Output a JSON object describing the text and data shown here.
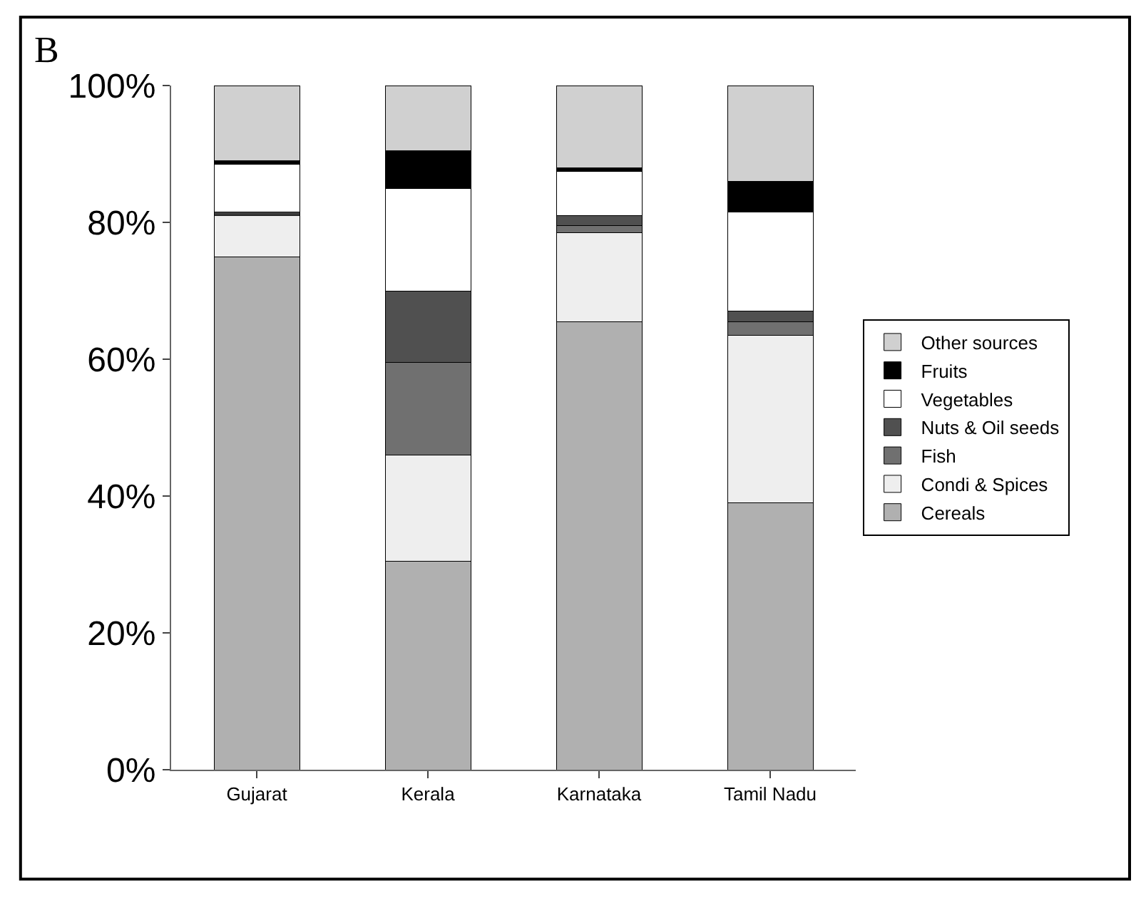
{
  "chart_data": {
    "type": "bar",
    "stacked": true,
    "title": "B",
    "categories": [
      "Gujarat",
      "Kerala",
      "Karnataka",
      "Tamil Nadu"
    ],
    "series": [
      {
        "name": "Cereals",
        "color": "#b0b0b0",
        "values": [
          75,
          30.5,
          65.5,
          39
        ]
      },
      {
        "name": "Condi & Spices",
        "color": "#eeeeee",
        "values": [
          6,
          15.5,
          13,
          24.5
        ]
      },
      {
        "name": "Fish",
        "color": "#707070",
        "values": [
          0.2,
          13.5,
          1,
          2
        ]
      },
      {
        "name": "Nuts & Oil seeds",
        "color": "#505050",
        "values": [
          0.3,
          10.5,
          1.5,
          1.5
        ]
      },
      {
        "name": "Vegetables",
        "color": "#ffffff",
        "values": [
          7,
          15,
          6.5,
          14.5
        ]
      },
      {
        "name": "Fruits",
        "color": "#000000",
        "values": [
          0.5,
          5.5,
          0.5,
          4.5
        ]
      },
      {
        "name": "Other sources",
        "color": "#d0d0d0",
        "values": [
          11,
          9.5,
          12,
          14
        ]
      }
    ],
    "ylim": [
      0,
      100
    ],
    "yticks": [
      {
        "value": 0,
        "label": "0%"
      },
      {
        "value": 20,
        "label": "20%"
      },
      {
        "value": 40,
        "label": "40%"
      },
      {
        "value": 60,
        "label": "60%"
      },
      {
        "value": 80,
        "label": "80%"
      },
      {
        "value": 100,
        "label": "100%"
      }
    ],
    "grid": false,
    "legend": "right"
  }
}
